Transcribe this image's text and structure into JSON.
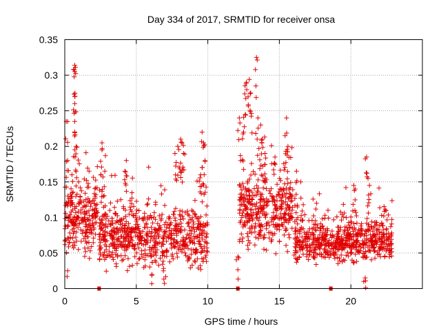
{
  "colors": {
    "points": "#e00000",
    "gap_markers": "#e00000"
  },
  "chart_data": {
    "type": "scatter",
    "title": "Day 334 of 2017, SRMTID for receiver onsa",
    "xlabel": "GPS time / hours",
    "ylabel": "SRMTID / TECUs",
    "xlim": [
      0,
      25
    ],
    "ylim": [
      0,
      0.35
    ],
    "grid": true,
    "x_ticks": [
      0,
      5,
      10,
      15,
      20
    ],
    "x_tick_labels": [
      "0",
      "5",
      "10",
      "15",
      "20"
    ],
    "y_ticks": [
      0,
      0.05,
      0.1,
      0.15,
      0.2,
      0.25,
      0.3,
      0.35
    ],
    "y_tick_labels": [
      "0",
      "0.05",
      "0.1",
      "0.15",
      "0.2",
      "0.25",
      "0.3",
      "0.35"
    ],
    "marker": "plus",
    "gap_markers_x": [
      2.4,
      12.1,
      18.6
    ],
    "series": [
      {
        "name": "SRMTID",
        "clusters": [
          {
            "x_range": [
              0.0,
              2.3
            ],
            "base": 0.095,
            "spread": 0.035,
            "count": 230,
            "peaks": [
              {
                "x": 0.1,
                "y": 0.235
              },
              {
                "x": 0.2,
                "y": 0.18
              },
              {
                "x": 0.5,
                "y": 0.16
              },
              {
                "x": 0.7,
                "y": 0.314
              },
              {
                "x": 0.7,
                "y": 0.305
              },
              {
                "x": 0.7,
                "y": 0.27
              },
              {
                "x": 0.7,
                "y": 0.26
              },
              {
                "x": 0.7,
                "y": 0.235
              },
              {
                "x": 0.8,
                "y": 0.2
              },
              {
                "x": 1.7,
                "y": 0.165
              },
              {
                "x": 0.2,
                "y": 0.025
              }
            ]
          },
          {
            "x_range": [
              2.4,
              10.0
            ],
            "base": 0.072,
            "spread": 0.032,
            "count": 680,
            "peaks": [
              {
                "x": 2.6,
                "y": 0.205
              },
              {
                "x": 2.6,
                "y": 0.195
              },
              {
                "x": 2.8,
                "y": 0.165
              },
              {
                "x": 4.2,
                "y": 0.165
              },
              {
                "x": 4.3,
                "y": 0.18
              },
              {
                "x": 7.7,
                "y": 0.19
              },
              {
                "x": 7.9,
                "y": 0.2
              },
              {
                "x": 8.1,
                "y": 0.21
              },
              {
                "x": 8.2,
                "y": 0.205
              },
              {
                "x": 8.3,
                "y": 0.19
              },
              {
                "x": 9.6,
                "y": 0.22
              },
              {
                "x": 9.7,
                "y": 0.205
              },
              {
                "x": 9.8,
                "y": 0.18
              },
              {
                "x": 9.5,
                "y": 0.16
              },
              {
                "x": 6.9,
                "y": 0.025
              },
              {
                "x": 6.1,
                "y": 0.02
              }
            ]
          },
          {
            "x_range": [
              12.2,
              16.0
            ],
            "base": 0.11,
            "spread": 0.04,
            "count": 380,
            "peaks": [
              {
                "x": 12.6,
                "y": 0.285
              },
              {
                "x": 12.7,
                "y": 0.29
              },
              {
                "x": 12.9,
                "y": 0.294
              },
              {
                "x": 13.0,
                "y": 0.275
              },
              {
                "x": 13.4,
                "y": 0.325
              },
              {
                "x": 13.5,
                "y": 0.24
              },
              {
                "x": 12.2,
                "y": 0.24
              },
              {
                "x": 12.5,
                "y": 0.22
              },
              {
                "x": 13.7,
                "y": 0.23
              },
              {
                "x": 13.8,
                "y": 0.21
              },
              {
                "x": 15.5,
                "y": 0.24
              },
              {
                "x": 15.4,
                "y": 0.215
              },
              {
                "x": 15.6,
                "y": 0.2
              },
              {
                "x": 14.0,
                "y": 0.19
              },
              {
                "x": 12.1,
                "y": 0.045
              }
            ]
          },
          {
            "x_range": [
              16.0,
              22.9
            ],
            "base": 0.065,
            "spread": 0.022,
            "count": 620,
            "peaks": [
              {
                "x": 16.2,
                "y": 0.165
              },
              {
                "x": 16.5,
                "y": 0.15
              },
              {
                "x": 17.6,
                "y": 0.12
              },
              {
                "x": 18.4,
                "y": 0.11
              },
              {
                "x": 20.2,
                "y": 0.145
              },
              {
                "x": 20.3,
                "y": 0.14
              },
              {
                "x": 21.1,
                "y": 0.185
              },
              {
                "x": 21.2,
                "y": 0.155
              },
              {
                "x": 21.3,
                "y": 0.145
              },
              {
                "x": 20.9,
                "y": 0.01
              },
              {
                "x": 21.0,
                "y": 0.015
              }
            ]
          }
        ]
      }
    ]
  }
}
